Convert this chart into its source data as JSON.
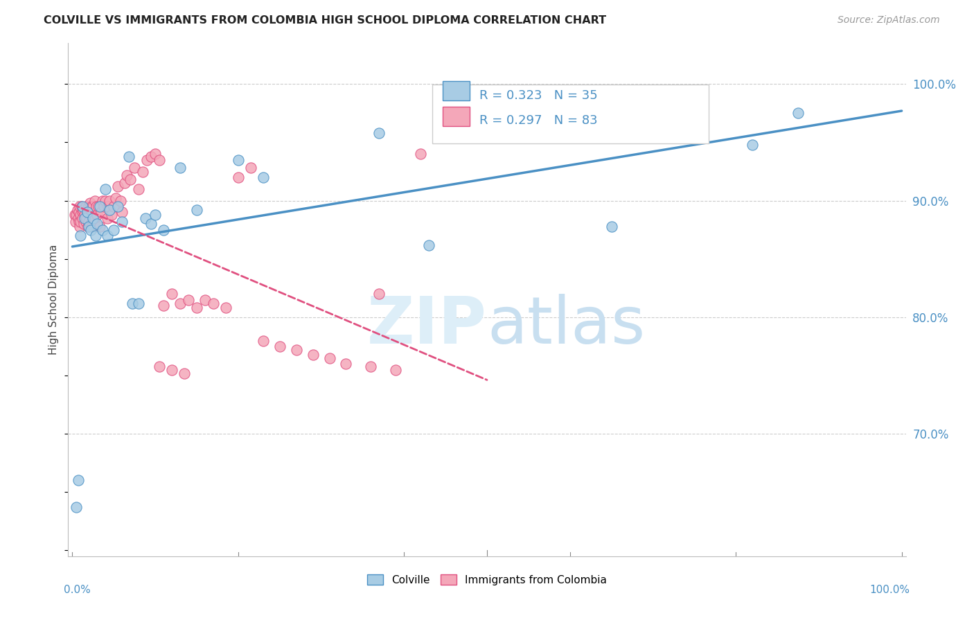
{
  "title": "COLVILLE VS IMMIGRANTS FROM COLOMBIA HIGH SCHOOL DIPLOMA CORRELATION CHART",
  "source": "Source: ZipAtlas.com",
  "ylabel": "High School Diploma",
  "legend_label1": "Colville",
  "legend_label2": "Immigrants from Colombia",
  "r1": 0.323,
  "n1": 35,
  "r2": 0.297,
  "n2": 83,
  "color_blue": "#a8cce4",
  "color_pink": "#f4a7b9",
  "color_line_blue": "#4a90c4",
  "color_line_pink": "#e05080",
  "watermark_color": "#ddeef8",
  "blue_points_x": [
    0.005,
    0.007,
    0.01,
    0.012,
    0.015,
    0.018,
    0.02,
    0.022,
    0.025,
    0.028,
    0.03,
    0.033,
    0.036,
    0.04,
    0.042,
    0.045,
    0.05,
    0.055,
    0.06,
    0.068,
    0.072,
    0.08,
    0.088,
    0.095,
    0.1,
    0.11,
    0.13,
    0.15,
    0.2,
    0.23,
    0.37,
    0.43,
    0.65,
    0.82,
    0.875
  ],
  "blue_points_y": [
    0.637,
    0.66,
    0.87,
    0.895,
    0.885,
    0.89,
    0.878,
    0.875,
    0.885,
    0.87,
    0.88,
    0.895,
    0.875,
    0.91,
    0.87,
    0.892,
    0.875,
    0.895,
    0.882,
    0.938,
    0.812,
    0.812,
    0.885,
    0.88,
    0.888,
    0.875,
    0.928,
    0.892,
    0.935,
    0.92,
    0.958,
    0.862,
    0.878,
    0.948,
    0.975
  ],
  "pink_points_x": [
    0.003,
    0.004,
    0.005,
    0.006,
    0.007,
    0.008,
    0.008,
    0.009,
    0.009,
    0.01,
    0.01,
    0.011,
    0.012,
    0.012,
    0.013,
    0.014,
    0.015,
    0.016,
    0.016,
    0.017,
    0.018,
    0.019,
    0.02,
    0.02,
    0.021,
    0.022,
    0.022,
    0.023,
    0.024,
    0.025,
    0.026,
    0.027,
    0.028,
    0.029,
    0.03,
    0.031,
    0.033,
    0.035,
    0.036,
    0.038,
    0.04,
    0.042,
    0.043,
    0.045,
    0.047,
    0.05,
    0.052,
    0.055,
    0.058,
    0.06,
    0.063,
    0.066,
    0.07,
    0.075,
    0.08,
    0.085,
    0.09,
    0.095,
    0.1,
    0.105,
    0.11,
    0.12,
    0.13,
    0.14,
    0.15,
    0.16,
    0.17,
    0.185,
    0.2,
    0.215,
    0.23,
    0.25,
    0.27,
    0.29,
    0.31,
    0.33,
    0.36,
    0.39,
    0.42,
    0.37,
    0.105,
    0.12,
    0.135
  ],
  "pink_points_y": [
    0.888,
    0.882,
    0.888,
    0.892,
    0.885,
    0.89,
    0.882,
    0.878,
    0.895,
    0.888,
    0.882,
    0.895,
    0.89,
    0.885,
    0.892,
    0.88,
    0.888,
    0.895,
    0.882,
    0.885,
    0.89,
    0.878,
    0.895,
    0.882,
    0.898,
    0.892,
    0.88,
    0.895,
    0.878,
    0.895,
    0.885,
    0.9,
    0.878,
    0.895,
    0.888,
    0.895,
    0.878,
    0.89,
    0.9,
    0.895,
    0.9,
    0.885,
    0.895,
    0.9,
    0.888,
    0.895,
    0.902,
    0.912,
    0.9,
    0.89,
    0.915,
    0.922,
    0.918,
    0.928,
    0.91,
    0.925,
    0.935,
    0.938,
    0.94,
    0.935,
    0.81,
    0.82,
    0.812,
    0.815,
    0.808,
    0.815,
    0.812,
    0.808,
    0.92,
    0.928,
    0.78,
    0.775,
    0.772,
    0.768,
    0.765,
    0.76,
    0.758,
    0.755,
    0.94,
    0.82,
    0.758,
    0.755,
    0.752
  ]
}
